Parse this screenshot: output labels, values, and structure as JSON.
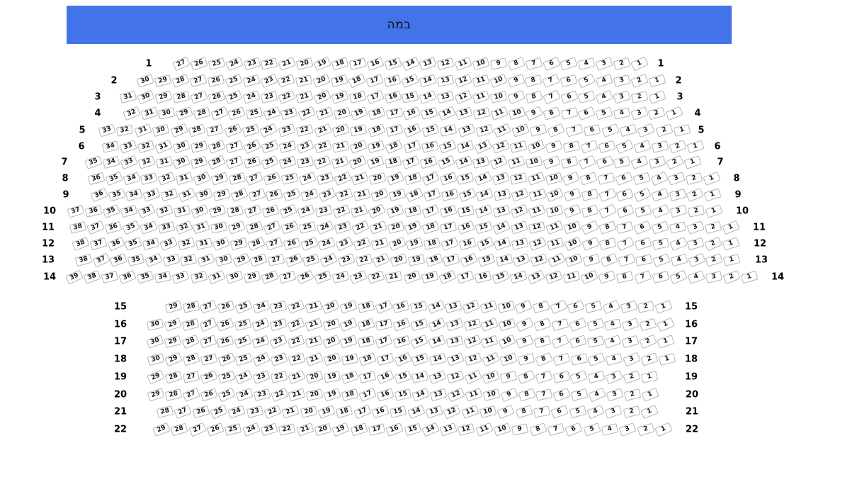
{
  "stage": {
    "label": "במה"
  },
  "colors": {
    "page_bg": "#ffffff",
    "stage_bg": "#4273e9",
    "stage_text": "#101010",
    "seat_border": "#b4b4b4",
    "seat_fill": "#ffffff",
    "seat_text": "#161616",
    "row_label": "#000000"
  },
  "seat_map": {
    "sections": [
      {
        "name": "upper",
        "rows": [
          {
            "label": "1",
            "seats": [
              27,
              26,
              25,
              24,
              23,
              22,
              21,
              20,
              19,
              18,
              17,
              16,
              15,
              14,
              13,
              12,
              11,
              10,
              9,
              8,
              7,
              6,
              5,
              4,
              3,
              2,
              1
            ]
          },
          {
            "label": "2",
            "seats": [
              30,
              29,
              28,
              27,
              26,
              25,
              24,
              23,
              22,
              21,
              20,
              19,
              18,
              17,
              16,
              15,
              14,
              13,
              12,
              11,
              10,
              9,
              8,
              7,
              6,
              5,
              4,
              3,
              2,
              1
            ]
          },
          {
            "label": "3",
            "seats": [
              31,
              30,
              29,
              28,
              27,
              26,
              25,
              24,
              23,
              22,
              21,
              20,
              19,
              18,
              17,
              16,
              15,
              14,
              13,
              12,
              11,
              10,
              9,
              8,
              7,
              6,
              5,
              4,
              3,
              2,
              1
            ]
          },
          {
            "label": "4",
            "seats": [
              32,
              31,
              30,
              29,
              28,
              27,
              26,
              25,
              24,
              23,
              22,
              21,
              20,
              19,
              18,
              17,
              16,
              15,
              14,
              13,
              12,
              11,
              10,
              9,
              8,
              7,
              6,
              5,
              4,
              3,
              2,
              1
            ]
          },
          {
            "label": "5",
            "seats": [
              33,
              32,
              31,
              30,
              29,
              28,
              27,
              26,
              25,
              24,
              23,
              22,
              21,
              20,
              19,
              18,
              17,
              16,
              15,
              14,
              13,
              12,
              11,
              10,
              9,
              8,
              7,
              6,
              5,
              4,
              3,
              2,
              1
            ]
          },
          {
            "label": "6",
            "seats": [
              34,
              33,
              32,
              31,
              30,
              29,
              28,
              27,
              26,
              25,
              24,
              23,
              22,
              21,
              20,
              19,
              18,
              17,
              16,
              15,
              14,
              13,
              12,
              11,
              10,
              9,
              8,
              7,
              6,
              5,
              4,
              3,
              2,
              1
            ]
          },
          {
            "label": "7",
            "seats": [
              35,
              34,
              33,
              32,
              31,
              30,
              29,
              28,
              27,
              26,
              25,
              24,
              23,
              22,
              21,
              20,
              19,
              18,
              17,
              16,
              15,
              14,
              13,
              12,
              11,
              10,
              9,
              8,
              7,
              6,
              5,
              4,
              3,
              2,
              1
            ]
          },
          {
            "label": "8",
            "seats": [
              36,
              35,
              34,
              33,
              32,
              31,
              30,
              29,
              28,
              27,
              26,
              25,
              24,
              23,
              22,
              21,
              20,
              19,
              18,
              17,
              16,
              15,
              14,
              13,
              12,
              11,
              10,
              9,
              8,
              7,
              6,
              5,
              4,
              3,
              2,
              1
            ]
          },
          {
            "label": "9",
            "seats": [
              36,
              35,
              34,
              33,
              32,
              31,
              30,
              29,
              28,
              27,
              26,
              25,
              24,
              23,
              22,
              21,
              20,
              19,
              18,
              17,
              16,
              15,
              14,
              13,
              12,
              11,
              10,
              9,
              8,
              7,
              6,
              5,
              4,
              3,
              2,
              1
            ]
          },
          {
            "label": "10",
            "seats": [
              37,
              36,
              35,
              34,
              33,
              32,
              31,
              30,
              29,
              28,
              27,
              26,
              25,
              24,
              23,
              22,
              21,
              20,
              19,
              18,
              17,
              16,
              15,
              14,
              13,
              12,
              11,
              10,
              9,
              8,
              7,
              6,
              5,
              4,
              3,
              2,
              1
            ]
          },
          {
            "label": "11",
            "seats": [
              38,
              37,
              36,
              35,
              34,
              33,
              32,
              31,
              30,
              29,
              28,
              27,
              26,
              25,
              24,
              23,
              22,
              21,
              20,
              19,
              18,
              17,
              16,
              15,
              14,
              13,
              12,
              11,
              10,
              9,
              8,
              7,
              6,
              5,
              4,
              3,
              2,
              1
            ]
          },
          {
            "label": "12",
            "seats": [
              38,
              37,
              36,
              35,
              34,
              33,
              32,
              31,
              30,
              29,
              28,
              27,
              26,
              25,
              24,
              23,
              22,
              21,
              20,
              19,
              18,
              17,
              16,
              15,
              14,
              13,
              12,
              11,
              10,
              9,
              8,
              7,
              6,
              5,
              4,
              3,
              2,
              1
            ]
          },
          {
            "label": "13",
            "seats": [
              38,
              37,
              36,
              35,
              34,
              33,
              32,
              31,
              30,
              29,
              28,
              27,
              26,
              25,
              24,
              23,
              22,
              21,
              20,
              19,
              18,
              17,
              16,
              15,
              14,
              13,
              12,
              11,
              10,
              9,
              8,
              7,
              6,
              5,
              4,
              3,
              2,
              1
            ]
          },
          {
            "label": "14",
            "seats": [
              39,
              38,
              37,
              36,
              35,
              34,
              33,
              32,
              31,
              30,
              29,
              28,
              27,
              26,
              25,
              24,
              23,
              22,
              21,
              20,
              19,
              18,
              17,
              16,
              15,
              14,
              13,
              12,
              11,
              10,
              9,
              8,
              7,
              6,
              5,
              4,
              3,
              2,
              1
            ]
          }
        ]
      },
      {
        "name": "lower",
        "rows": [
          {
            "label": "15",
            "seats": [
              29,
              28,
              27,
              26,
              25,
              24,
              23,
              22,
              21,
              20,
              19,
              18,
              17,
              16,
              15,
              14,
              13,
              12,
              11,
              10,
              9,
              8,
              7,
              6,
              5,
              4,
              3,
              2,
              1
            ]
          },
          {
            "label": "16",
            "seats": [
              30,
              29,
              28,
              27,
              26,
              25,
              24,
              23,
              22,
              21,
              20,
              19,
              18,
              17,
              16,
              15,
              14,
              13,
              12,
              11,
              10,
              9,
              8,
              7,
              6,
              5,
              4,
              3,
              2,
              1
            ]
          },
          {
            "label": "17",
            "seats": [
              30,
              29,
              28,
              27,
              26,
              25,
              24,
              23,
              22,
              21,
              20,
              19,
              18,
              17,
              16,
              15,
              14,
              13,
              12,
              11,
              10,
              9,
              8,
              7,
              6,
              5,
              4,
              3,
              2,
              1
            ]
          },
          {
            "label": "18",
            "seats": [
              30,
              29,
              28,
              27,
              26,
              25,
              24,
              23,
              22,
              21,
              20,
              19,
              18,
              17,
              16,
              15,
              14,
              13,
              12,
              11,
              10,
              9,
              8,
              7,
              6,
              5,
              4,
              3,
              2,
              1
            ]
          },
          {
            "label": "19",
            "seats": [
              29,
              28,
              27,
              26,
              25,
              24,
              23,
              22,
              21,
              20,
              19,
              18,
              17,
              16,
              15,
              14,
              13,
              12,
              11,
              10,
              9,
              8,
              7,
              6,
              5,
              4,
              3,
              2,
              1
            ]
          },
          {
            "label": "20",
            "seats": [
              29,
              28,
              27,
              26,
              25,
              24,
              23,
              22,
              21,
              20,
              19,
              18,
              17,
              16,
              15,
              14,
              13,
              12,
              11,
              10,
              9,
              8,
              7,
              6,
              5,
              4,
              3,
              2,
              1
            ]
          },
          {
            "label": "21",
            "seats": [
              28,
              27,
              26,
              25,
              24,
              23,
              22,
              21,
              20,
              19,
              18,
              17,
              16,
              15,
              14,
              13,
              12,
              11,
              10,
              9,
              8,
              7,
              6,
              5,
              4,
              3,
              2,
              1
            ]
          },
          {
            "label": "22",
            "seats": [
              29,
              28,
              27,
              26,
              25,
              24,
              23,
              22,
              21,
              20,
              19,
              18,
              17,
              16,
              15,
              14,
              13,
              12,
              11,
              10,
              9,
              8,
              7,
              6,
              5,
              4,
              3,
              2,
              1
            ]
          }
        ]
      }
    ]
  }
}
